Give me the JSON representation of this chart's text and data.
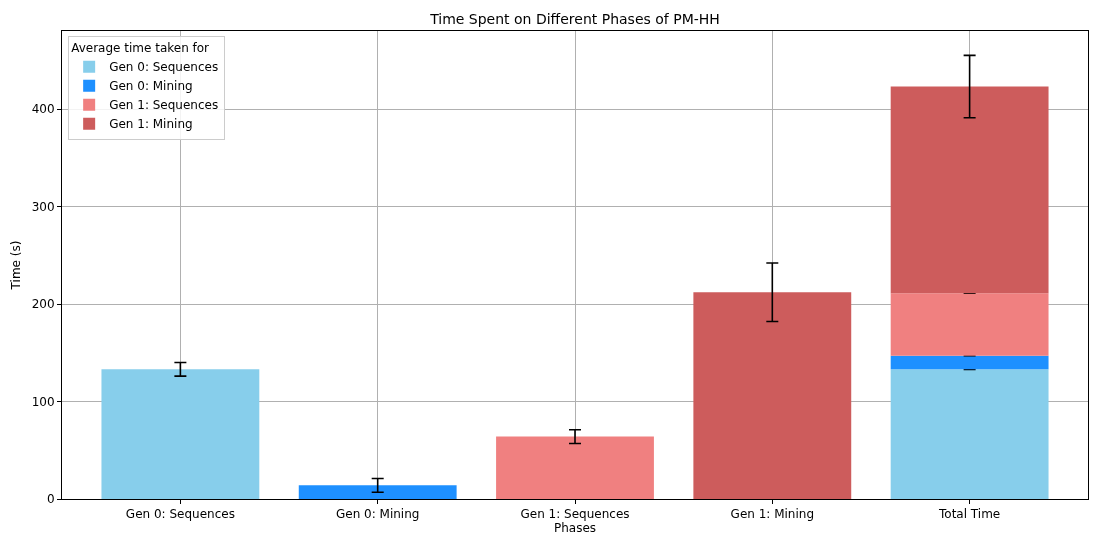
{
  "chart_data": {
    "type": "bar",
    "title": "Time Spent on Different Phases of PM-HH",
    "xlabel": "Phases",
    "ylabel": "Time (s)",
    "legend_title": "Average time taken for",
    "categories": [
      "Gen 0: Sequences",
      "Gen 0: Mining",
      "Gen 1: Sequences",
      "Gen 1: Mining",
      "Total Time"
    ],
    "stacked": true,
    "series": [
      {
        "name": "Gen 0: Sequences",
        "color": "#87ceeb",
        "values": [
          133,
          null,
          null,
          null,
          133
        ],
        "errors": [
          7,
          null,
          null,
          null,
          null
        ]
      },
      {
        "name": "Gen 0: Mining",
        "color": "#1e90ff",
        "values": [
          null,
          14,
          null,
          null,
          14
        ],
        "errors": [
          null,
          7,
          null,
          null,
          null
        ]
      },
      {
        "name": "Gen 1: Sequences",
        "color": "#f08080",
        "values": [
          null,
          null,
          64,
          null,
          64
        ],
        "errors": [
          null,
          null,
          7,
          null,
          null
        ]
      },
      {
        "name": "Gen 1: Mining",
        "color": "#cd5c5c",
        "values": [
          null,
          null,
          null,
          212,
          212
        ],
        "errors": [
          null,
          null,
          null,
          30,
          32
        ]
      }
    ],
    "ylim": [
      0,
      480
    ],
    "yticks": [
      0,
      100,
      200,
      300,
      400
    ],
    "grid": true,
    "legend": "top left"
  }
}
